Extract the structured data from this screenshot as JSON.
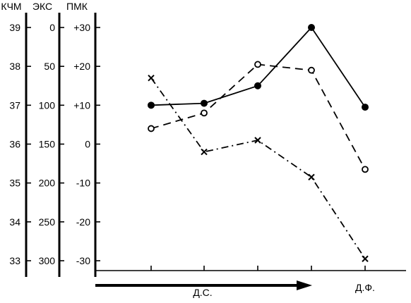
{
  "chart_data": {
    "type": "line",
    "axes": [
      {
        "name": "КЧМ",
        "ticks": [
          "39",
          "38",
          "37",
          "36",
          "35",
          "34",
          "33"
        ],
        "values": [
          39,
          38,
          37,
          36,
          35,
          34,
          33
        ]
      },
      {
        "name": "ЭКС",
        "ticks": [
          "0",
          "50",
          "100",
          "150",
          "200",
          "250",
          "300"
        ],
        "values": [
          0,
          50,
          100,
          150,
          200,
          250,
          300
        ]
      },
      {
        "name": "ПМК",
        "ticks": [
          "+30",
          "+20",
          "+10",
          "0",
          "-10",
          "-20",
          "-30"
        ],
        "values": [
          30,
          20,
          10,
          0,
          -10,
          -20,
          -30
        ]
      }
    ],
    "x_positions": 5,
    "series": [
      {
        "style": "solid",
        "marker": "filled-circle",
        "values": [
          37.0,
          37.05,
          37.5,
          39.0,
          36.95
        ]
      },
      {
        "style": "dashed",
        "marker": "open-circle",
        "values": [
          36.4,
          36.8,
          38.05,
          37.9,
          35.35
        ]
      },
      {
        "style": "dash-dot",
        "marker": "x",
        "values": [
          37.7,
          35.8,
          36.1,
          35.15,
          33.05
        ]
      }
    ],
    "ds_label": "Д.С.",
    "df_label": "Д.Ф."
  }
}
